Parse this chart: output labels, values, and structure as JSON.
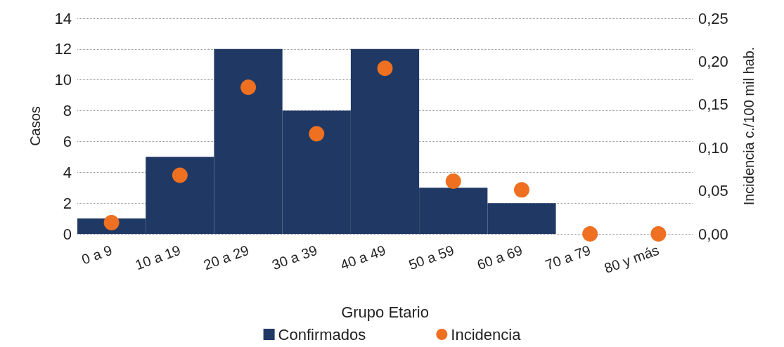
{
  "chart_data": {
    "type": "bar",
    "xlabel": "Grupo Etario",
    "ylabel": "Casos",
    "y2label": "Incidencia c./100 mil hab.",
    "categories": [
      "0 a 9",
      "10 a 19",
      "20 a 29",
      "30 a 39",
      "40 a 49",
      "50 a 59",
      "60 a 69",
      "70 a 79",
      "80 y más"
    ],
    "series": [
      {
        "name": "Confirmados",
        "type": "bar",
        "color": "#203864",
        "values": [
          1,
          5,
          12,
          8,
          12,
          3,
          2,
          0,
          0
        ]
      },
      {
        "name": "Incidencia",
        "type": "scatter",
        "axis": "y2",
        "color": "#ee7020",
        "marker": "circle",
        "values": [
          0.013,
          0.068,
          0.17,
          0.116,
          0.192,
          0.061,
          0.051,
          0,
          0
        ]
      }
    ],
    "ylim": [
      0,
      14
    ],
    "yticks": [
      0,
      2,
      4,
      6,
      8,
      10,
      12,
      14
    ],
    "y2lim": [
      0,
      0.25
    ],
    "y2ticks": [
      {
        "value": 0,
        "label": "0,00"
      },
      {
        "value": 0.05,
        "label": "0,05"
      },
      {
        "value": 0.1,
        "label": "0,10"
      },
      {
        "value": 0.15,
        "label": "0,15"
      },
      {
        "value": 0.2,
        "label": "0,20"
      },
      {
        "value": 0.25,
        "label": "0,25"
      }
    ],
    "grid": "y",
    "legend": "bottom"
  }
}
